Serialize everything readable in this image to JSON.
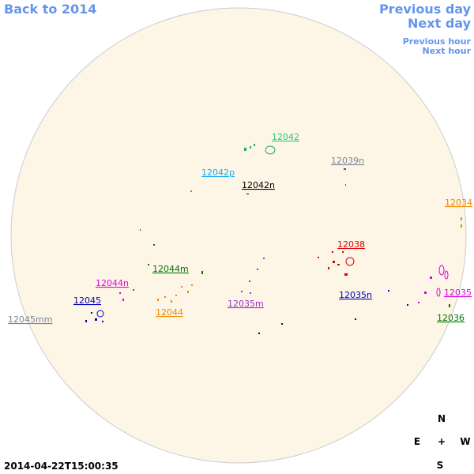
{
  "nav": {
    "back": "Back to 2014",
    "previous_day": "Previous day",
    "next_day": "Next day",
    "previous_hour": "Previous hour",
    "next_hour": "Next hour"
  },
  "regions": [
    {
      "label": "12042",
      "color": "#22cc77"
    },
    {
      "label": "12039n",
      "color": "#778899"
    },
    {
      "label": "12042p",
      "color": "#1eaaee"
    },
    {
      "label": "12042n",
      "color": "#000000"
    },
    {
      "label": "12034",
      "color": "#ee8800"
    },
    {
      "label": "12038",
      "color": "#dd0000"
    },
    {
      "label": "12044m",
      "color": "#007700"
    },
    {
      "label": "12044n",
      "color": "#dd00dd"
    },
    {
      "label": "12035m",
      "color": "#9933cc"
    },
    {
      "label": "12035n",
      "color": "#0000bb"
    },
    {
      "label": "12045",
      "color": "#0000bb"
    },
    {
      "label": "12035",
      "color": "#dd00dd"
    },
    {
      "label": "12044",
      "color": "#ee8800"
    },
    {
      "label": "12036",
      "color": "#007700"
    },
    {
      "label": "12045mm",
      "color": "#778899"
    }
  ],
  "compass": {
    "n": "N",
    "e": "E",
    "center": "+",
    "w": "W",
    "s": "S"
  },
  "timestamp": "2014-04-22T15:00:35"
}
